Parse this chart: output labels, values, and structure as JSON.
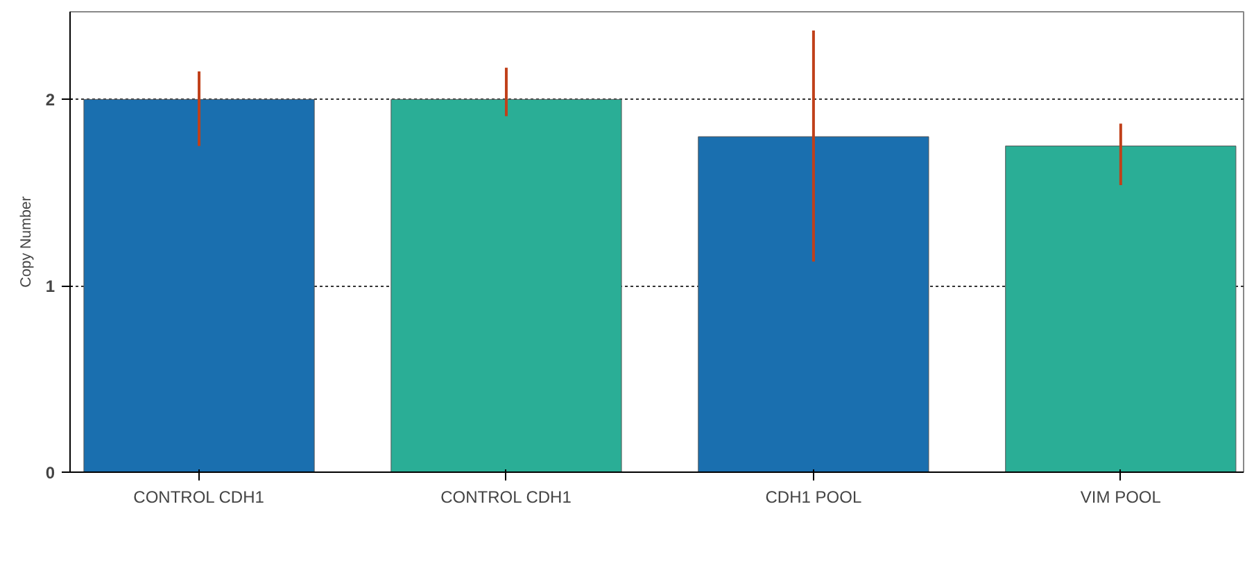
{
  "chart_data": {
    "type": "bar",
    "ylabel": "Copy Number",
    "categories": [
      "CONTROL CDH1",
      "CONTROL CDH1",
      "CDH1 POOL",
      "VIM POOL"
    ],
    "values": [
      2.0,
      2.0,
      1.8,
      1.75
    ],
    "colors": [
      "#1a6faf",
      "#2aae96",
      "#1a6faf",
      "#2aae96"
    ],
    "errors": [
      [
        1.75,
        2.15
      ],
      [
        1.91,
        2.17
      ],
      [
        1.13,
        2.37
      ],
      [
        1.54,
        1.87
      ]
    ],
    "ylim": [
      0,
      2.47
    ],
    "yticks": [
      0,
      1,
      2
    ],
    "grid": "y"
  }
}
